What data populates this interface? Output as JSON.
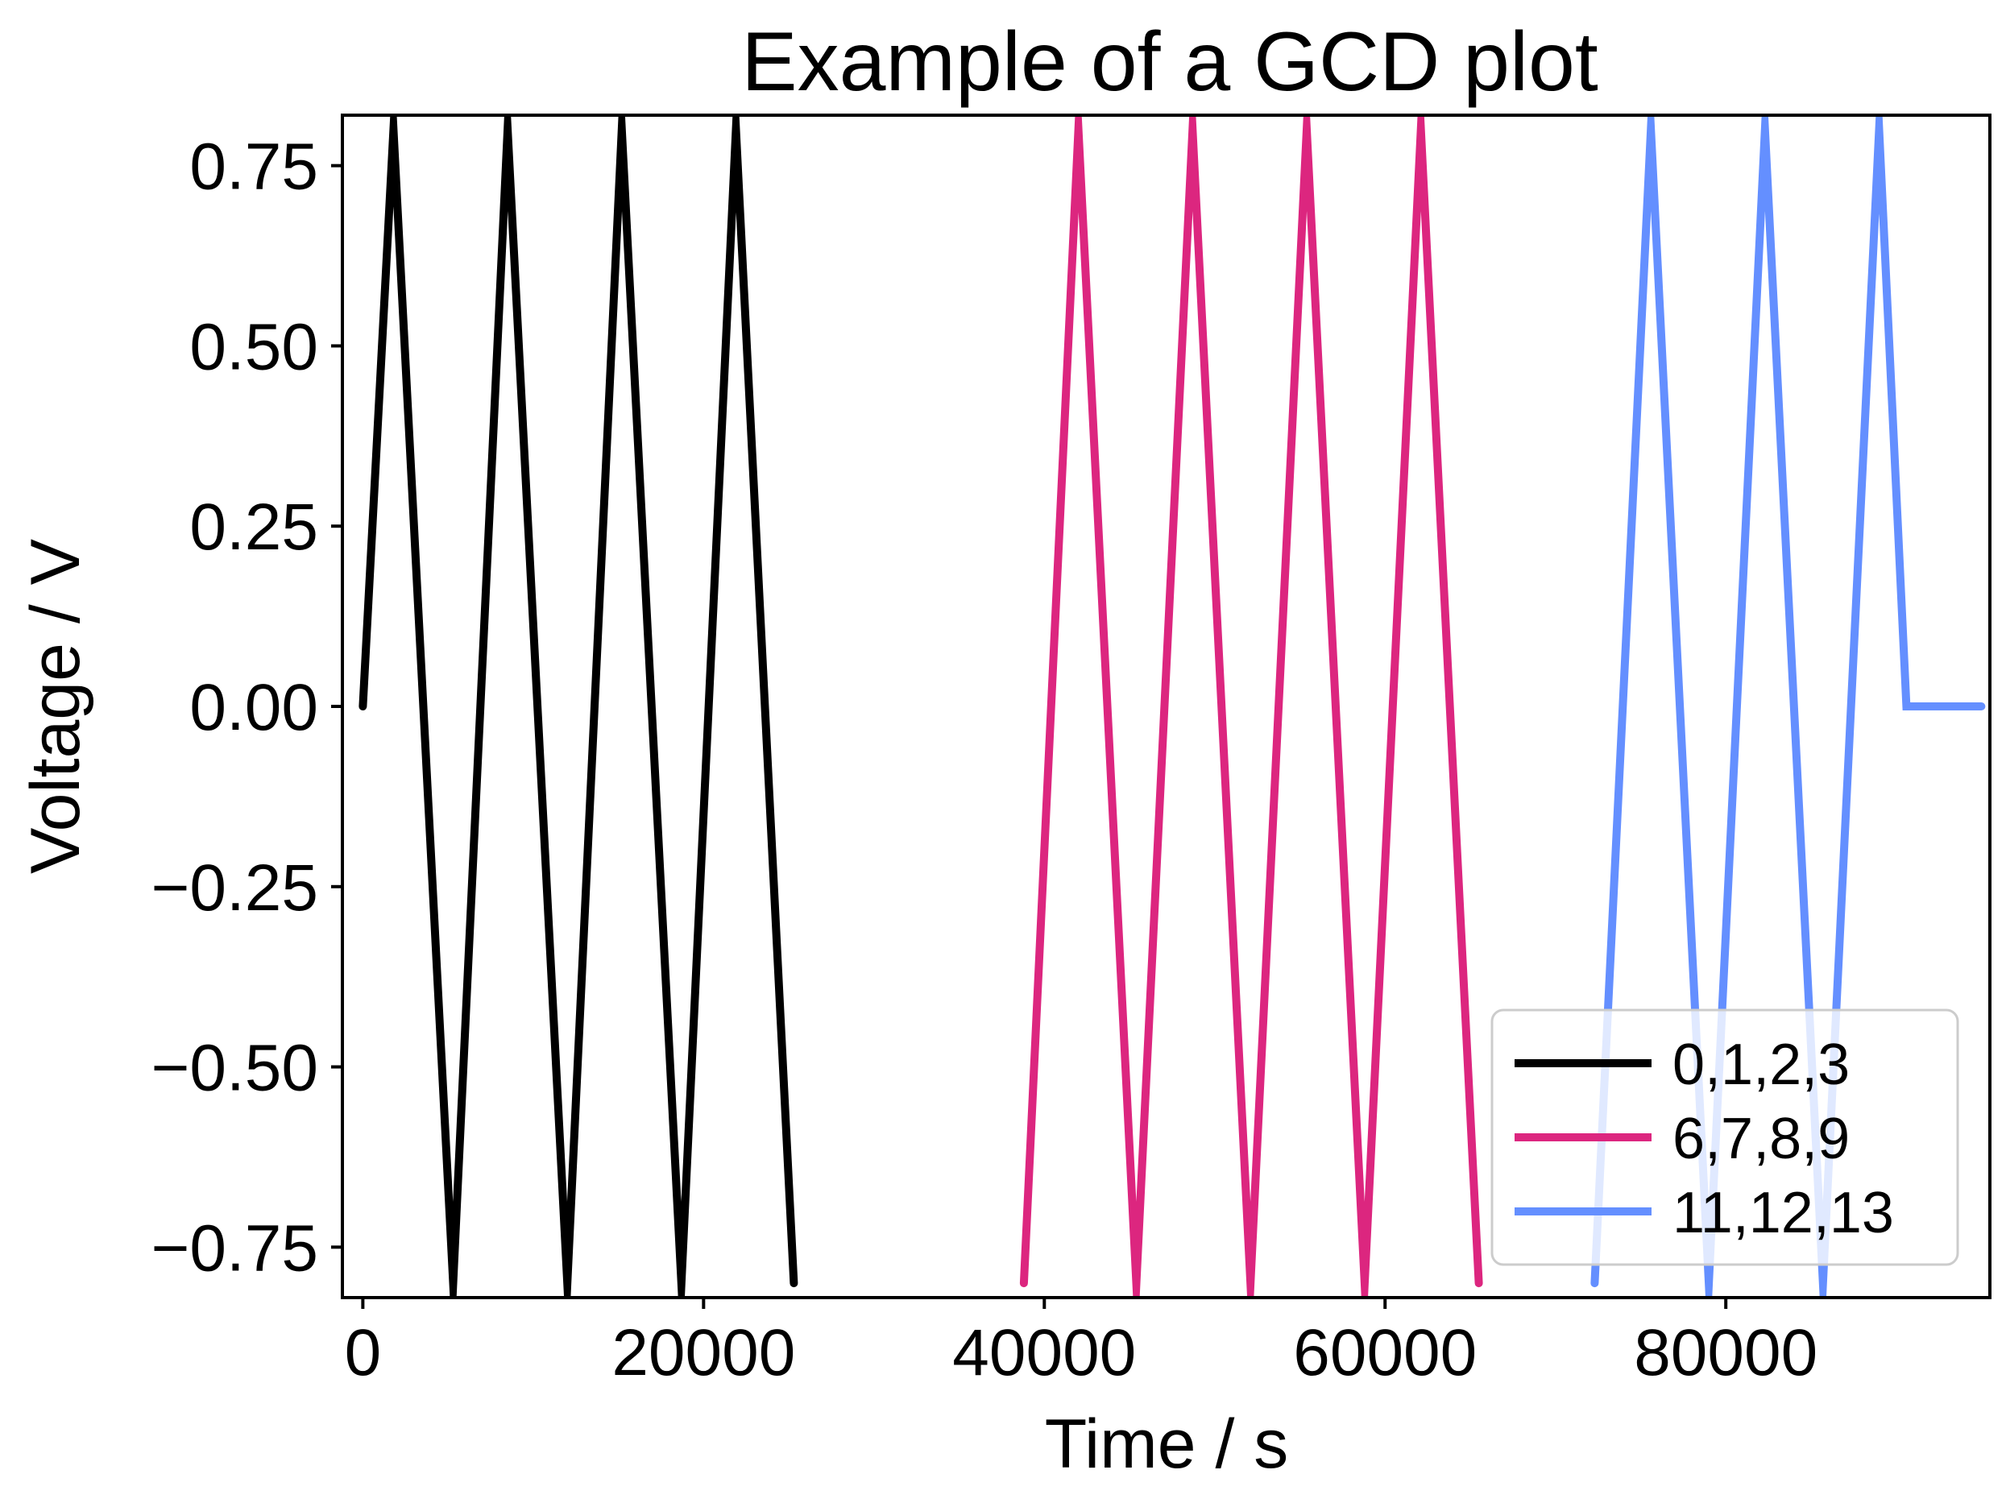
{
  "chart_data": {
    "type": "line",
    "title": "Example of a GCD plot",
    "xlabel": "Time / s",
    "ylabel": "Voltage / V",
    "xlim": [
      -1200,
      95500
    ],
    "ylim": [
      -0.82,
      0.82
    ],
    "xticks": [
      0,
      20000,
      40000,
      60000,
      80000
    ],
    "xtick_labels": [
      "0",
      "20000",
      "40000",
      "60000",
      "80000"
    ],
    "yticks": [
      0.75,
      0.5,
      0.25,
      0.0,
      -0.25,
      -0.5,
      -0.75
    ],
    "ytick_labels": [
      "0.75",
      "0.50",
      "0.25",
      "0.00",
      "−0.25",
      "−0.50",
      "−0.75"
    ],
    "grid": false,
    "legend": "lower-right",
    "series": [
      {
        "name": "0,1,2,3",
        "color": "#000000",
        "x": [
          0,
          1800,
          5300,
          8500,
          12000,
          15200,
          18700,
          21900,
          25300
        ],
        "y": [
          0.0,
          0.8,
          -0.8,
          0.8,
          -0.8,
          0.8,
          -0.8,
          0.8,
          -0.8
        ]
      },
      {
        "name": "6,7,8,9",
        "color": "#dc267f",
        "x": [
          38800,
          42000,
          45400,
          48700,
          52100,
          55400,
          58800,
          62100,
          65500
        ],
        "y": [
          -0.8,
          0.8,
          -0.8,
          0.8,
          -0.8,
          0.8,
          -0.8,
          0.8,
          -0.8
        ]
      },
      {
        "name": "11,12,13",
        "color": "#648fff",
        "x": [
          72300,
          75600,
          79000,
          82300,
          85700,
          89000,
          90600,
          95000
        ],
        "y": [
          -0.8,
          0.8,
          -0.8,
          0.8,
          -0.8,
          0.8,
          0.0,
          0.0
        ]
      }
    ]
  }
}
